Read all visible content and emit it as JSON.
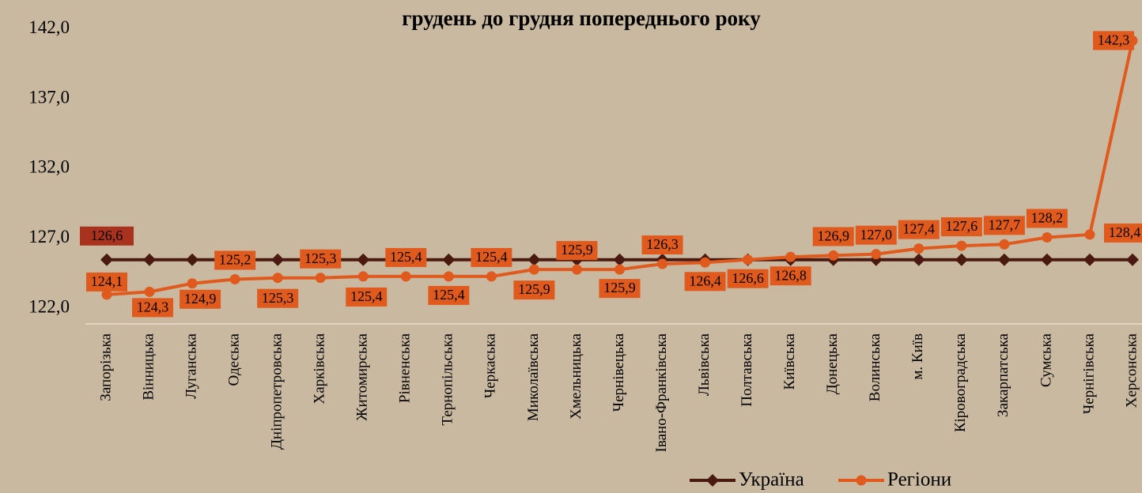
{
  "chart_data": {
    "type": "line",
    "title": "грудень до грудня попереднього року",
    "categories": [
      "Запорізька",
      "Вінницька",
      "Луганська",
      "Одеська",
      "Дніпропетровська",
      "Харківська",
      "Житомирська",
      "Рівненська",
      "Тернопільська",
      "Черкаська",
      "Миколаївська",
      "Хмельницька",
      "Чернівецька",
      "Івано-Франківська",
      "Львівська",
      "Полтавська",
      "Київська",
      "Донецька",
      "Волинська",
      "м. Київ",
      "Кіровоградська",
      "Закарпатська",
      "Сумська",
      "Чернігівська",
      "Херсонська"
    ],
    "series": [
      {
        "name": "Україна",
        "color": "#4a1a10",
        "marker": "diamond",
        "values": [
          126.6,
          126.6,
          126.6,
          126.6,
          126.6,
          126.6,
          126.6,
          126.6,
          126.6,
          126.6,
          126.6,
          126.6,
          126.6,
          126.6,
          126.6,
          126.6,
          126.6,
          126.6,
          126.6,
          126.6,
          126.6,
          126.6,
          126.6,
          126.6,
          126.6
        ],
        "value_labels": [
          "126,6",
          null,
          null,
          null,
          null,
          null,
          null,
          null,
          null,
          null,
          null,
          null,
          null,
          null,
          null,
          null,
          null,
          null,
          null,
          null,
          null,
          null,
          null,
          null,
          null
        ],
        "label_color": "#a8321e"
      },
      {
        "name": "Регіони",
        "color": "#e05a1e",
        "marker": "circle",
        "values": [
          124.1,
          124.3,
          124.9,
          125.2,
          125.3,
          125.3,
          125.4,
          125.4,
          125.4,
          125.4,
          125.9,
          125.9,
          125.9,
          126.3,
          126.4,
          126.6,
          126.8,
          126.9,
          127.0,
          127.4,
          127.6,
          127.7,
          128.2,
          128.4,
          142.3
        ],
        "value_labels": [
          "124,1",
          "124,3",
          "124,9",
          "125,2",
          "125,3",
          "125,3",
          "125,4",
          "125,4",
          "125,4",
          "125,4",
          "125,9",
          "125,9",
          "125,9",
          "126,3",
          "126,4",
          "126,6",
          "126,8",
          "126,9",
          "127,0",
          "127,4",
          "127,6",
          "127,7",
          "128,2",
          "128,4",
          "142,3"
        ],
        "label_color": "#e05a1e"
      }
    ],
    "ylim": [
      122,
      143
    ],
    "yticks": [
      {
        "value": 122,
        "label": "122,0"
      },
      {
        "value": 127,
        "label": "127,0"
      },
      {
        "value": 132,
        "label": "132,0"
      },
      {
        "value": 137,
        "label": "137,0"
      },
      {
        "value": 142,
        "label": "142,0"
      }
    ],
    "legend": "bottom-right"
  }
}
